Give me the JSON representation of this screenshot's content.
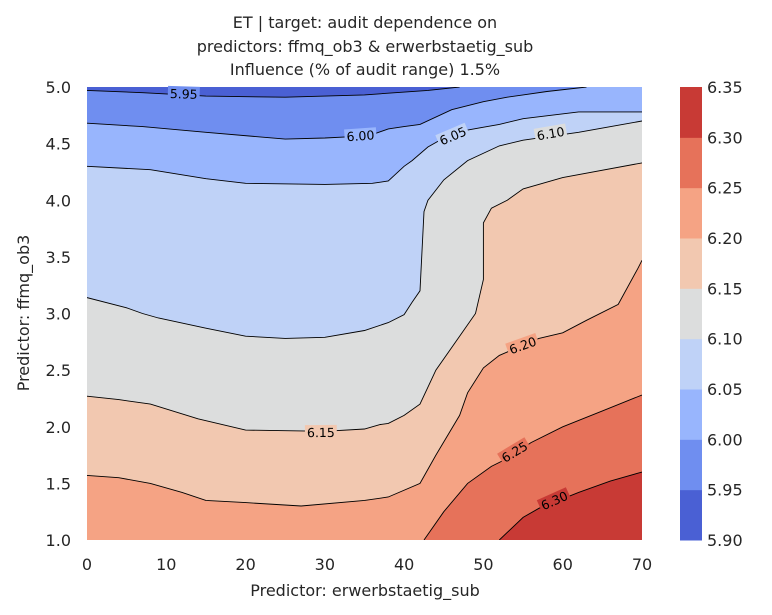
{
  "chart_data": {
    "type": "contour",
    "title_lines": [
      "ET | target: audit dependence on",
      "predictors: ffmq_ob3 & erwerbstaetig_sub",
      "Influence (% of audit range) 1.5%"
    ],
    "xlabel": "Predictor: erwerbstaetig_sub",
    "ylabel": "Predictor: ffmq_ob3",
    "xlim": [
      0,
      70
    ],
    "ylim": [
      1.0,
      5.0
    ],
    "x_ticks": [
      {
        "value": 0,
        "label": "0"
      },
      {
        "value": 10,
        "label": "10"
      },
      {
        "value": 20,
        "label": "20"
      },
      {
        "value": 30,
        "label": "30"
      },
      {
        "value": 40,
        "label": "40"
      },
      {
        "value": 50,
        "label": "50"
      },
      {
        "value": 60,
        "label": "60"
      },
      {
        "value": 70,
        "label": "70"
      }
    ],
    "y_ticks": [
      {
        "value": 1.0,
        "label": "1.0"
      },
      {
        "value": 1.5,
        "label": "1.5"
      },
      {
        "value": 2.0,
        "label": "2.0"
      },
      {
        "value": 2.5,
        "label": "2.5"
      },
      {
        "value": 3.0,
        "label": "3.0"
      },
      {
        "value": 3.5,
        "label": "3.5"
      },
      {
        "value": 4.0,
        "label": "4.0"
      },
      {
        "value": 4.5,
        "label": "4.5"
      },
      {
        "value": 5.0,
        "label": "5.0"
      }
    ],
    "colorbar": {
      "levels": [
        5.9,
        5.95,
        6.0,
        6.05,
        6.1,
        6.15,
        6.2,
        6.25,
        6.3,
        6.35
      ],
      "tick_labels": [
        "5.90",
        "5.95",
        "6.00",
        "6.05",
        "6.10",
        "6.15",
        "6.20",
        "6.25",
        "6.30",
        "6.35"
      ],
      "colors": [
        "#4a60d4",
        "#6f8ef0",
        "#98b5fd",
        "#bfd2f7",
        "#dcdddd",
        "#f2c8b0",
        "#f5a384",
        "#e6725a",
        "#c83a35"
      ]
    },
    "contours": [
      {
        "level": 5.95,
        "label": "5.95",
        "label_at": [
          12.2,
          4.93
        ],
        "points": [
          [
            0,
            4.97
          ],
          [
            7,
            4.95
          ],
          [
            15,
            4.92
          ],
          [
            25,
            4.91
          ],
          [
            35,
            4.93
          ],
          [
            43,
            4.97
          ],
          [
            47,
            5.0
          ]
        ]
      },
      {
        "level": 6.0,
        "label": "6.00",
        "label_at": [
          34.5,
          4.56
        ],
        "points": [
          [
            0,
            4.68
          ],
          [
            7,
            4.65
          ],
          [
            15,
            4.6
          ],
          [
            25,
            4.54
          ],
          [
            30,
            4.55
          ],
          [
            33,
            4.56
          ],
          [
            36,
            4.58
          ],
          [
            38,
            4.63
          ],
          [
            40,
            4.65
          ],
          [
            42,
            4.67
          ],
          [
            46,
            4.8
          ],
          [
            50,
            4.87
          ],
          [
            53,
            4.91
          ],
          [
            55,
            4.93
          ],
          [
            58,
            4.96
          ],
          [
            63,
            5.0
          ]
        ]
      },
      {
        "level": 6.05,
        "label": "6.05",
        "label_at": [
          46.2,
          4.56
        ],
        "points": [
          [
            0,
            4.3
          ],
          [
            8,
            4.27
          ],
          [
            15,
            4.19
          ],
          [
            20,
            4.15
          ],
          [
            30,
            4.14
          ],
          [
            36,
            4.15
          ],
          [
            38,
            4.17
          ],
          [
            40,
            4.3
          ],
          [
            41,
            4.35
          ],
          [
            43,
            4.47
          ],
          [
            45,
            4.55
          ],
          [
            48,
            4.62
          ],
          [
            52,
            4.67
          ],
          [
            55,
            4.72
          ],
          [
            62,
            4.78
          ],
          [
            70,
            4.78
          ]
        ]
      },
      {
        "level": 6.1,
        "label": "6.10",
        "label_at": [
          58.5,
          4.58
        ],
        "points": [
          [
            0,
            3.14
          ],
          [
            5,
            3.05
          ],
          [
            7,
            3.0
          ],
          [
            9,
            2.96
          ],
          [
            15,
            2.87
          ],
          [
            20,
            2.8
          ],
          [
            25,
            2.78
          ],
          [
            30,
            2.79
          ],
          [
            35,
            2.85
          ],
          [
            38,
            2.92
          ],
          [
            40,
            2.99
          ],
          [
            41,
            3.1
          ],
          [
            42,
            3.2
          ],
          [
            42.5,
            3.9
          ],
          [
            43,
            4.0
          ],
          [
            45,
            4.18
          ],
          [
            48,
            4.35
          ],
          [
            52,
            4.48
          ],
          [
            55,
            4.53
          ],
          [
            62,
            4.6
          ],
          [
            70,
            4.7
          ]
        ]
      },
      {
        "level": 6.15,
        "label": "6.15",
        "label_at": [
          29.5,
          1.94
        ],
        "points": [
          [
            0,
            2.27
          ],
          [
            4,
            2.24
          ],
          [
            8,
            2.2
          ],
          [
            14,
            2.07
          ],
          [
            20,
            1.97
          ],
          [
            30,
            1.96
          ],
          [
            35,
            1.98
          ],
          [
            37,
            2.02
          ],
          [
            38,
            2.03
          ],
          [
            40,
            2.1
          ],
          [
            42,
            2.2
          ],
          [
            44,
            2.5
          ],
          [
            47,
            2.8
          ],
          [
            49,
            3.0
          ],
          [
            50,
            3.3
          ],
          [
            50,
            3.8
          ],
          [
            51,
            3.93
          ],
          [
            53,
            4.0
          ],
          [
            55,
            4.1
          ],
          [
            60,
            4.2
          ],
          [
            70,
            4.33
          ]
        ]
      },
      {
        "level": 6.2,
        "label": "6.20",
        "label_at": [
          55.0,
          2.71
        ],
        "points": [
          [
            0,
            1.57
          ],
          [
            4,
            1.55
          ],
          [
            8,
            1.5
          ],
          [
            12,
            1.42
          ],
          [
            15,
            1.35
          ],
          [
            20,
            1.33
          ],
          [
            27,
            1.3
          ],
          [
            35,
            1.35
          ],
          [
            38,
            1.38
          ],
          [
            42,
            1.5
          ],
          [
            44,
            1.75
          ],
          [
            47,
            2.1
          ],
          [
            48,
            2.3
          ],
          [
            50,
            2.52
          ],
          [
            52,
            2.63
          ],
          [
            57,
            2.78
          ],
          [
            60,
            2.83
          ],
          [
            63,
            2.94
          ],
          [
            67,
            3.08
          ],
          [
            69.5,
            3.4
          ],
          [
            70,
            3.47
          ]
        ]
      },
      {
        "level": 6.25,
        "label": "6.25",
        "label_at": [
          54.0,
          1.77
        ],
        "points": [
          [
            42.5,
            1.0
          ],
          [
            45,
            1.25
          ],
          [
            48,
            1.5
          ],
          [
            51,
            1.65
          ],
          [
            53,
            1.72
          ],
          [
            56,
            1.86
          ],
          [
            60,
            2.0
          ],
          [
            65,
            2.14
          ],
          [
            70,
            2.28
          ]
        ]
      },
      {
        "level": 6.3,
        "label": "6.30",
        "label_at": [
          59.0,
          1.34
        ],
        "points": [
          [
            52,
            1.0
          ],
          [
            55,
            1.2
          ],
          [
            57,
            1.28
          ],
          [
            62,
            1.42
          ],
          [
            66,
            1.52
          ],
          [
            70,
            1.6
          ]
        ]
      }
    ]
  }
}
